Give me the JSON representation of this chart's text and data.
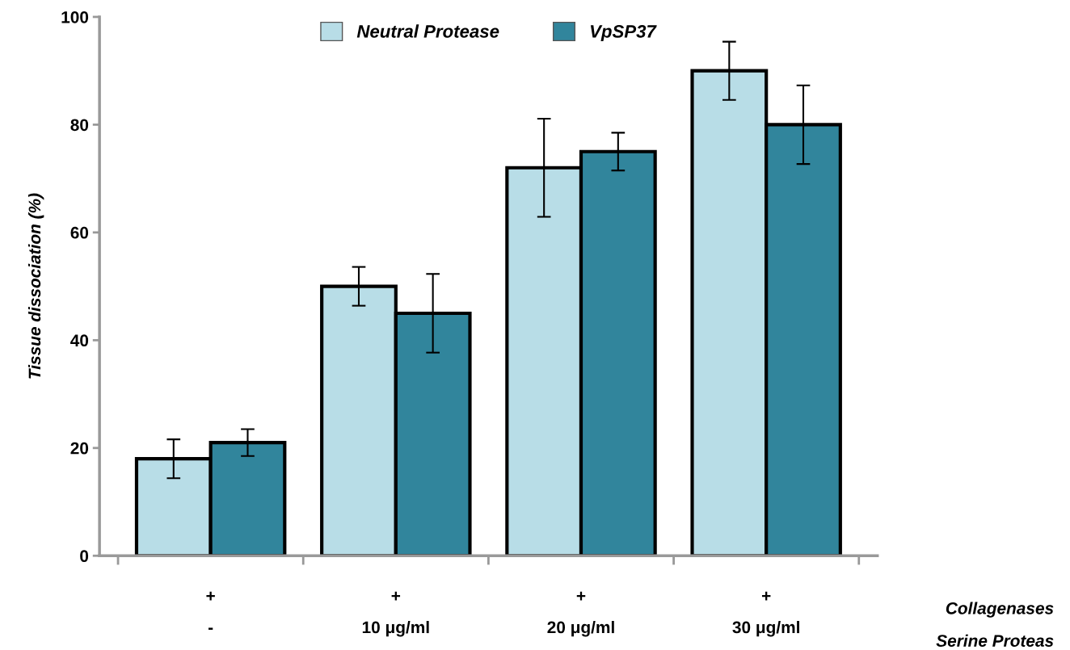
{
  "chart_data": {
    "type": "bar",
    "ylabel": "Tissue dissociation (%)",
    "categories": [
      "+\n-",
      "+\n10 μg/ml",
      "+\n20 μg/ml",
      "+\n30 μg/ml"
    ],
    "series": [
      {
        "name": "Neutral Protease",
        "color": "#b8dde7",
        "values": [
          18,
          50,
          72,
          90
        ],
        "errors": [
          3.6,
          3.6,
          9.1,
          5.4
        ]
      },
      {
        "name": "VpSP37",
        "color": "#31859c",
        "values": [
          21,
          45,
          75,
          80
        ],
        "errors": [
          2.5,
          7.3,
          3.5,
          7.3
        ]
      }
    ],
    "ylim": [
      0,
      100
    ],
    "yticks": [
      0,
      20,
      40,
      60,
      80,
      100
    ],
    "grid": false,
    "legend": "top",
    "annotations": [
      "Collagenases",
      "Serine Proteas"
    ]
  }
}
